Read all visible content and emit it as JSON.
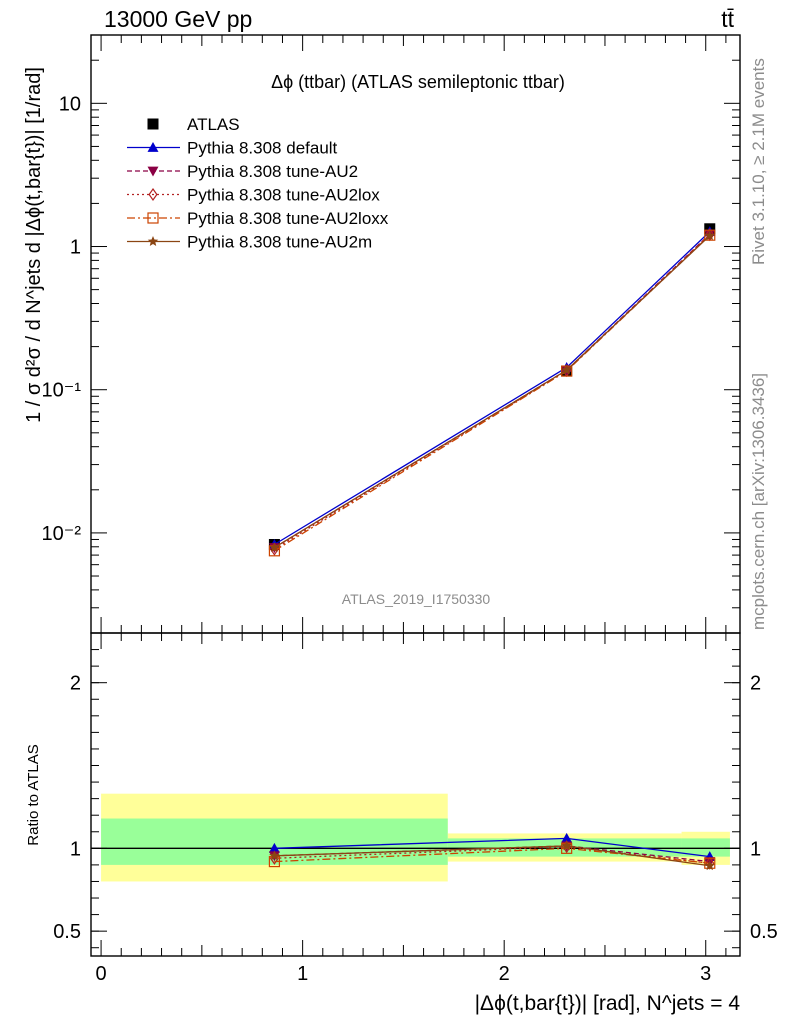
{
  "header": {
    "left": "13000 GeV pp",
    "right": "tt̄"
  },
  "side": {
    "rivet": "Rivet 3.1.10, ≥ 2.1M events",
    "mcplots": "mcplots.cern.ch [arXiv:1306.3436]"
  },
  "chart_data": [
    {
      "type": "line",
      "panel": "main",
      "title": "Δϕ (ttbar) (ATLAS semileptonic ttbar)",
      "ylabel": "1 / σ d²σ / d N^jets d |Δϕ(t,bar{t})| [1/rad]",
      "yscale": "log",
      "ylim": [
        0.002,
        30
      ],
      "xlim": [
        -0.05,
        3.17
      ],
      "yticks": [
        {
          "value": 10,
          "label": "10"
        },
        {
          "value": 1,
          "label": "1"
        },
        {
          "value": 0.1,
          "label": "10⁻¹"
        },
        {
          "value": 0.01,
          "label": "10⁻²"
        }
      ],
      "watermark": "ATLAS_2019_I1750330",
      "legend_position": "top-left",
      "series": [
        {
          "name": "ATLAS",
          "color": "#000000",
          "marker": "square",
          "x": [
            0.86,
            2.31,
            3.02
          ],
          "y": [
            0.0083,
            0.135,
            1.33
          ]
        },
        {
          "name": "Pythia 8.308 default",
          "color": "#0000cc",
          "marker": "triangle-up",
          "x": [
            0.86,
            2.31,
            3.02
          ],
          "y": [
            0.0083,
            0.143,
            1.27
          ]
        },
        {
          "name": "Pythia 8.308 tune-AU2",
          "color": "#8b0044",
          "marker": "triangle-down",
          "x": [
            0.86,
            2.31,
            3.02
          ],
          "y": [
            0.0079,
            0.137,
            1.22
          ]
        },
        {
          "name": "Pythia 8.308 tune-AU2lox",
          "color": "#b22222",
          "marker": "diamond",
          "x": [
            0.86,
            2.31,
            3.02
          ],
          "y": [
            0.0077,
            0.136,
            1.21
          ]
        },
        {
          "name": "Pythia 8.308 tune-AU2loxx",
          "color": "#cc4400",
          "marker": "open-square",
          "x": [
            0.86,
            2.31,
            3.02
          ],
          "y": [
            0.0075,
            0.135,
            1.2
          ]
        },
        {
          "name": "Pythia 8.308 tune-AU2m",
          "color": "#8b4513",
          "marker": "star",
          "x": [
            0.86,
            2.31,
            3.02
          ],
          "y": [
            0.0079,
            0.137,
            1.19
          ]
        }
      ]
    },
    {
      "type": "line",
      "panel": "ratio",
      "ylabel": "Ratio to ATLAS",
      "xlabel": "|Δϕ(t,bar{t})| [rad], N^jets = 4",
      "xlim": [
        -0.05,
        3.17
      ],
      "ylim": [
        0.35,
        2.3
      ],
      "xticks": [
        "0",
        "1",
        "2",
        "3"
      ],
      "yticks": [
        "0.5",
        "1",
        "2"
      ],
      "bands": [
        {
          "x0": 0.0,
          "x1": 1.72,
          "inner": [
            0.9,
            1.18
          ],
          "outer": [
            0.8,
            1.33
          ]
        },
        {
          "x0": 1.72,
          "x1": 2.88,
          "inner": [
            0.95,
            1.06
          ],
          "outer": [
            0.92,
            1.09
          ]
        },
        {
          "x0": 2.88,
          "x1": 3.12,
          "inner": [
            0.95,
            1.06
          ],
          "outer": [
            0.9,
            1.1
          ]
        }
      ],
      "series": [
        {
          "name": "Pythia 8.308 default",
          "x": [
            0.86,
            2.31,
            3.02
          ],
          "y": [
            1.0,
            1.06,
            0.95
          ]
        },
        {
          "name": "Pythia 8.308 tune-AU2",
          "x": [
            0.86,
            2.31,
            3.02
          ],
          "y": [
            0.955,
            1.015,
            0.92
          ]
        },
        {
          "name": "Pythia 8.308 tune-AU2lox",
          "x": [
            0.86,
            2.31,
            3.02
          ],
          "y": [
            0.94,
            1.01,
            0.91
          ]
        },
        {
          "name": "Pythia 8.308 tune-AU2loxx",
          "x": [
            0.86,
            2.31,
            3.02
          ],
          "y": [
            0.92,
            1.0,
            0.91
          ]
        },
        {
          "name": "Pythia 8.308 tune-AU2m",
          "x": [
            0.86,
            2.31,
            3.02
          ],
          "y": [
            0.955,
            1.015,
            0.895
          ]
        }
      ]
    }
  ]
}
